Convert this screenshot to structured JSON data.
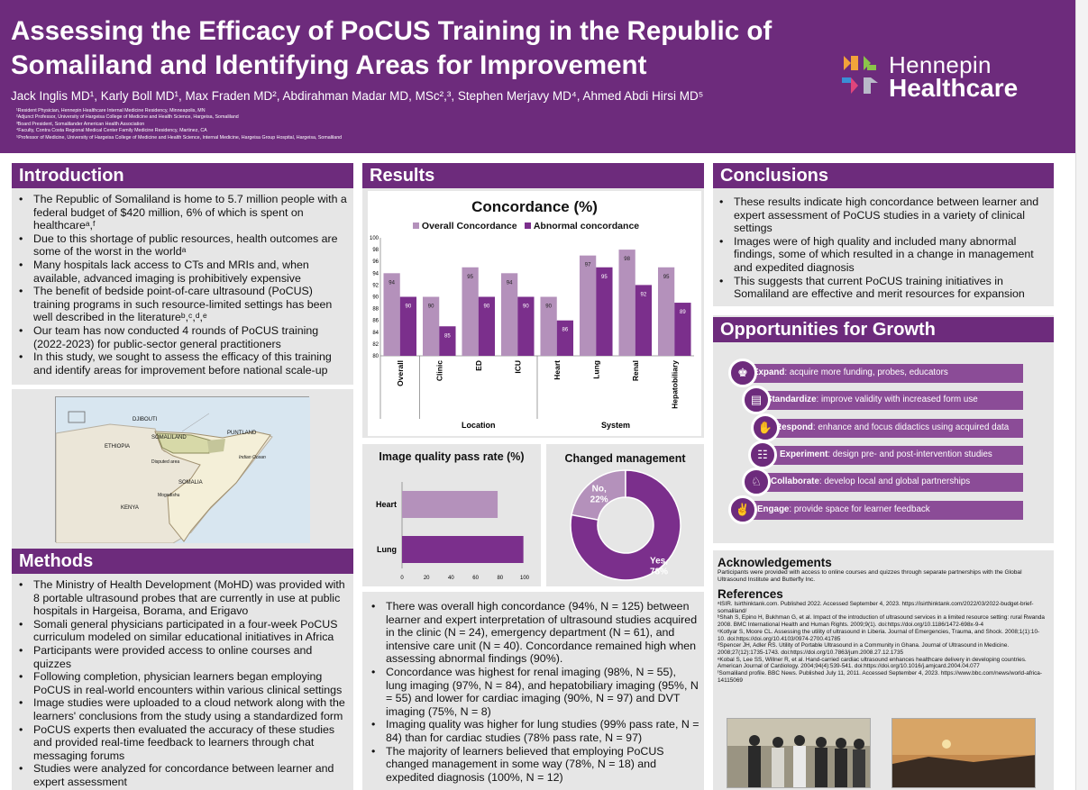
{
  "header": {
    "title": "Assessing the Efficacy of PoCUS Training in the Republic of Somaliland and Identifying Areas for Improvement",
    "authors": "Jack Inglis MD¹, Karly Boll MD¹, Max Fraden MD², Abdirahman Madar MD, MSc²,³, Stephen Merjavy MD⁴, Ahmed Abdi Hirsi MD⁵",
    "affiliations": [
      "¹Resident Physician, Hennepin Healthcare Internal Medicine Residency, Minneapolis, MN",
      "²Adjunct Professor, University of Hargeisa College of Medicine and Health Science, Hargeisa, Somaliland",
      "³Board President, Somalilander American Health Association",
      "⁴Faculty, Contra Costa Regional Medical Center Family Medicine Residency, Martinez, CA",
      "⁵Professor of Medicine, University of Hargeisa College of Medicine and Health Science, Internal Medicine, Hargeisa Group Hospital, Hargeisa, Somaliland"
    ],
    "logo_line1": "Hennepin",
    "logo_line2": "Healthcare"
  },
  "introduction": {
    "title": "Introduction",
    "bullets": [
      "The Republic of Somaliland is home to 5.7 million people with a federal budget of $420 million, 6% of which is spent on healthcareᵃ,ᶠ",
      "Due to this shortage of public resources, health outcomes are some of the worst in the worldᵃ",
      "Many hospitals lack access to CTs and MRIs and, when available, advanced imaging is prohibitively expensive",
      "The benefit of bedside point-of-care ultrasound (PoCUS) training programs in such resource-limited settings has been well described in the literatureᵇ,ᶜ,ᵈ,ᵉ",
      "Our team has now conducted 4 rounds of PoCUS training (2022-2023) for public-sector general practitioners",
      "In this study, we sought to assess the efficacy of this training and identify areas for improvement before national scale-up"
    ]
  },
  "map": {
    "labels": [
      "DJIBOUTI",
      "SOMALILAND",
      "PUNTLAND",
      "ETHIOPIA",
      "Disputed area",
      "Indian Ocean",
      "SOMALIA",
      "Mogadishu",
      "KENYA"
    ]
  },
  "methods": {
    "title": "Methods",
    "bullets": [
      "The Ministry of Health Development (MoHD) was provided with 8 portable ultrasound probes that are currently in use at public hospitals in Hargeisa, Borama, and Erigavo",
      "Somali general physicians participated in a four-week PoCUS curriculum modeled on similar educational initiatives in Africa",
      "Participants were provided access to online courses and quizzes",
      "Following completion, physician learners began employing PoCUS in real-world encounters within various clinical settings",
      "Image studies were uploaded to a cloud network along with the learners' conclusions from the study using a standardized form",
      "PoCUS experts then evaluated the accuracy of these studies and provided real-time feedback to learners through chat messaging forums",
      "Studies were analyzed for concordance between learner and expert assessment"
    ]
  },
  "results": {
    "title": "Results",
    "bullets": [
      "There was overall high concordance (94%, N = 125) between learner and expert interpretation of ultrasound studies acquired in the clinic (N = 24), emergency department (N = 61), and intensive care unit (N = 40). Concordance remained high when assessing abnormal findings (90%).",
      "Concordance was highest for renal imaging (98%, N = 55), lung imaging (97%, N = 84), and hepatobiliary imaging (95%, N = 55) and lower for cardiac imaging (90%, N = 97) and DVT imaging (75%, N = 8)",
      "Imaging quality was higher for lung studies (99% pass rate, N = 84) than for cardiac studies (78% pass rate, N = 97)",
      "The majority of learners believed that employing PoCUS changed management in some way (78%, N = 18) and expedited diagnosis (100%, N = 12)"
    ]
  },
  "chart_data": [
    {
      "type": "bar",
      "title": "Concordance (%)",
      "categories": [
        "Overall",
        "Clinic",
        "ED",
        "ICU",
        "Heart",
        "Lung",
        "Renal",
        "Hepatobiliary"
      ],
      "groups": [
        {
          "label": "Location",
          "categories": [
            "Clinic",
            "ED",
            "ICU"
          ]
        },
        {
          "label": "System",
          "categories": [
            "Heart",
            "Lung",
            "Renal",
            "Hepatobiliary"
          ]
        }
      ],
      "series": [
        {
          "name": "Overall Concordance",
          "color": "#b491bb",
          "values": [
            94,
            90,
            95,
            94,
            90,
            97,
            98,
            95
          ]
        },
        {
          "name": "Abnormal concordance",
          "color": "#7b2f8c",
          "values": [
            90,
            85,
            90,
            90,
            86,
            95,
            92,
            89
          ]
        }
      ],
      "ylim": [
        80,
        100
      ],
      "yticks": [
        80,
        82,
        84,
        86,
        88,
        90,
        92,
        94,
        96,
        98,
        100
      ],
      "legend": "top"
    },
    {
      "type": "bar",
      "orientation": "horizontal",
      "title": "Image quality pass rate (%)",
      "categories": [
        "Heart",
        "Lung"
      ],
      "values": [
        78,
        99
      ],
      "colors": [
        "#b491bb",
        "#7b2f8c"
      ],
      "xlim": [
        0,
        100
      ],
      "xticks": [
        0,
        20,
        40,
        60,
        80,
        100
      ]
    },
    {
      "type": "pie",
      "title": "Changed management",
      "labels": [
        "No, 22%",
        "Yes, 78%"
      ],
      "values": [
        22,
        78
      ],
      "colors": [
        "#b491bb",
        "#7b2f8c"
      ]
    }
  ],
  "conclusions": {
    "title": "Conclusions",
    "bullets": [
      "These results indicate high concordance between learner and expert assessment of PoCUS studies in a variety of clinical settings",
      "Images were of high quality and included many abnormal findings, some of which resulted in a change in management and expedited diagnosis",
      "This suggests that current PoCUS training initiatives in Somaliland are effective and merit resources for expansion"
    ]
  },
  "growth": {
    "title": "Opportunities for Growth",
    "items": [
      {
        "term": "Expand",
        "desc": ": acquire more funding, probes, educators"
      },
      {
        "term": "Standardize",
        "desc": ": improve validity with increased form use"
      },
      {
        "term": "Respond",
        "desc": ": enhance and focus didactics using acquired data"
      },
      {
        "term": "Experiment",
        "desc": ": design pre- and post-intervention studies"
      },
      {
        "term": "Collaborate",
        "desc": ": develop local and global partnerships"
      },
      {
        "term": "Engage",
        "desc": ": provide space for learner feedback"
      }
    ]
  },
  "ack": {
    "title": "Acknowledgements",
    "text": "Participants were provided with access to online courses and quizzes through separate partnerships with the Global Ultrasound Institute and Butterfly Inc.",
    "ref_title": "References",
    "refs": [
      "ᵃISIR. Isirthinktank.com. Published 2022. Accessed September 4, 2023. https://isirthinktank.com/2022/03/2022-budget-brief-somaliland/",
      "ᵇShah S, Epino H, Bukhman G, et al. Impact of the introduction of ultrasound services in a limited resource setting: rural Rwanda 2008. BMC International Health and Human Rights. 2009;9(1). doi:https://doi.org/10.1186/1472-698x-9-4",
      "ᶜKotlyar S, Moore CL. Assessing the utility of ultrasound in Liberia. Journal of Emergencies, Trauma, and Shock. 2008;1(1):10-10. doi:https://doi.org/10.4103/0974-2700.41785",
      "ᵈSpencer JH, Adler RS. Utility of Portable Ultrasound in a Community in Ghana. Journal of Ultrasound in Medicine. 2008;27(12):1735-1743. doi:https://doi.org/10.7863/jum.2008.27.12.1735",
      "ᵉKobal S, Lee SS, Willner R, et al. Hand-carried cardiac ultrasound enhances healthcare delivery in developing countries. American Journal of Cardiology. 2004;94(4):539-541. doi:https://doi.org/10.1016/j.amjcard.2004.04.077",
      "ᶠSomaliland profile. BBC News. Published July 11, 2011. Accessed September 4, 2023. https://www.bbc.com/news/world-africa-14115069"
    ]
  }
}
